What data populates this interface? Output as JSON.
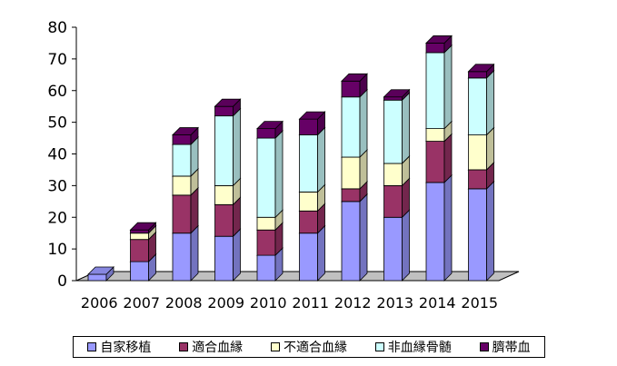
{
  "chart_data": {
    "type": "bar",
    "stacked": true,
    "style": "3d-column",
    "categories": [
      "2006",
      "2007",
      "2008",
      "2009",
      "2010",
      "2011",
      "2012",
      "2013",
      "2014",
      "2015"
    ],
    "series": [
      {
        "name": "自家移植",
        "color": "#9999ff",
        "values": [
          2,
          6,
          15,
          14,
          8,
          15,
          25,
          20,
          31,
          29
        ]
      },
      {
        "name": "適合血縁",
        "color": "#993366",
        "values": [
          0,
          7,
          12,
          10,
          8,
          7,
          4,
          10,
          13,
          6
        ]
      },
      {
        "name": "不適合血縁",
        "color": "#ffffcc",
        "values": [
          0,
          2,
          6,
          6,
          4,
          6,
          10,
          7,
          4,
          11
        ]
      },
      {
        "name": "非血縁骨髄",
        "color": "#ccffff",
        "values": [
          0,
          0,
          10,
          22,
          25,
          18,
          19,
          20,
          24,
          18
        ]
      },
      {
        "name": "臍帯血",
        "color": "#660066",
        "values": [
          0,
          1,
          3,
          3,
          3,
          5,
          5,
          1,
          3,
          2
        ]
      }
    ],
    "ylim": [
      0,
      80
    ],
    "yticks": [
      0,
      10,
      20,
      30,
      40,
      50,
      60,
      70,
      80
    ],
    "grid": false,
    "legend": "bottom"
  }
}
